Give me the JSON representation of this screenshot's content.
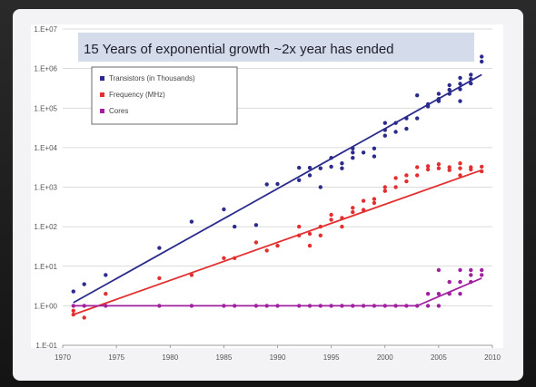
{
  "chart_data": {
    "type": "scatter",
    "title": "15 Years of exponential growth ~2x year has ended",
    "xlabel": "",
    "ylabel": "",
    "scale_y": "log",
    "xlim": [
      1970,
      2010
    ],
    "ylim": [
      0.1,
      10000000
    ],
    "x_ticks": [
      "1970",
      "1975",
      "1980",
      "1985",
      "1990",
      "1995",
      "2000",
      "2005",
      "2010"
    ],
    "y_ticks": [
      "1.E-01",
      "1.E+00",
      "1.E+01",
      "1.E+02",
      "1.E+03",
      "1.E+04",
      "1.E+05",
      "1.E+06",
      "1.E+07"
    ],
    "grid": true,
    "legend_position": "top-left",
    "series": [
      {
        "name": "Transistors (in Thousands)",
        "color": "#2b2b8c",
        "trend": [
          [
            1971,
            1.2
          ],
          [
            2009,
            700000
          ]
        ],
        "points": [
          [
            1971,
            2.3
          ],
          [
            1972,
            3.5
          ],
          [
            1974,
            6
          ],
          [
            1979,
            29
          ],
          [
            1982,
            134
          ],
          [
            1985,
            275
          ],
          [
            1986,
            100
          ],
          [
            1988,
            110
          ],
          [
            1989,
            1180
          ],
          [
            1990,
            1200
          ],
          [
            1992,
            1500
          ],
          [
            1992,
            3100
          ],
          [
            1993,
            3100
          ],
          [
            1993,
            2000
          ],
          [
            1994,
            1000
          ],
          [
            1994,
            3000
          ],
          [
            1995,
            3300
          ],
          [
            1995,
            5500
          ],
          [
            1996,
            4000
          ],
          [
            1996,
            3000
          ],
          [
            1997,
            7500
          ],
          [
            1997,
            5500
          ],
          [
            1997,
            9500
          ],
          [
            1998,
            7500
          ],
          [
            1999,
            9500
          ],
          [
            1999,
            6000
          ],
          [
            2000,
            20000
          ],
          [
            2000,
            28000
          ],
          [
            2000,
            42000
          ],
          [
            2001,
            42000
          ],
          [
            2001,
            25000
          ],
          [
            2002,
            55000
          ],
          [
            2002,
            30000
          ],
          [
            2003,
            210000
          ],
          [
            2003,
            55000
          ],
          [
            2004,
            125000
          ],
          [
            2004,
            110000
          ],
          [
            2005,
            230000
          ],
          [
            2005,
            170000
          ],
          [
            2005,
            150000
          ],
          [
            2006,
            290000
          ],
          [
            2006,
            230000
          ],
          [
            2006,
            380000
          ],
          [
            2007,
            410000
          ],
          [
            2007,
            580000
          ],
          [
            2007,
            300000
          ],
          [
            2007,
            150000
          ],
          [
            2008,
            700000
          ],
          [
            2008,
            550000
          ],
          [
            2008,
            420000
          ],
          [
            2009,
            2000000
          ],
          [
            2009,
            1500000
          ]
        ]
      },
      {
        "name": "Frequency (MHz)",
        "color": "#e23030",
        "trend": [
          [
            1971,
            0.6
          ],
          [
            2009,
            2700
          ]
        ],
        "points": [
          [
            1971,
            0.75
          ],
          [
            1971,
            0.6
          ],
          [
            1972,
            0.5
          ],
          [
            1974,
            2
          ],
          [
            1979,
            5
          ],
          [
            1982,
            6
          ],
          [
            1985,
            16
          ],
          [
            1986,
            16
          ],
          [
            1988,
            40
          ],
          [
            1989,
            25
          ],
          [
            1990,
            33
          ],
          [
            1992,
            60
          ],
          [
            1992,
            100
          ],
          [
            1993,
            66
          ],
          [
            1993,
            33
          ],
          [
            1994,
            100
          ],
          [
            1994,
            60
          ],
          [
            1995,
            200
          ],
          [
            1995,
            150
          ],
          [
            1996,
            166
          ],
          [
            1996,
            100
          ],
          [
            1997,
            300
          ],
          [
            1997,
            233
          ],
          [
            1998,
            450
          ],
          [
            1998,
            266
          ],
          [
            1999,
            500
          ],
          [
            1999,
            400
          ],
          [
            2000,
            1000
          ],
          [
            2000,
            800
          ],
          [
            2001,
            1700
          ],
          [
            2001,
            1000
          ],
          [
            2002,
            2000
          ],
          [
            2002,
            1400
          ],
          [
            2003,
            3200
          ],
          [
            2003,
            2000
          ],
          [
            2004,
            3400
          ],
          [
            2004,
            2800
          ],
          [
            2005,
            3800
          ],
          [
            2005,
            3000
          ],
          [
            2006,
            2700
          ],
          [
            2006,
            3200
          ],
          [
            2007,
            3000
          ],
          [
            2007,
            4000
          ],
          [
            2007,
            2000
          ],
          [
            2008,
            3200
          ],
          [
            2008,
            2800
          ],
          [
            2009,
            3300
          ],
          [
            2009,
            2500
          ]
        ]
      },
      {
        "name": "Cores",
        "color": "#a020a0",
        "trend": [
          [
            1971,
            1
          ],
          [
            2003,
            1
          ],
          [
            2009,
            5
          ]
        ],
        "points": [
          [
            1971,
            1
          ],
          [
            1972,
            1
          ],
          [
            1974,
            1
          ],
          [
            1979,
            1
          ],
          [
            1982,
            1
          ],
          [
            1985,
            1
          ],
          [
            1986,
            1
          ],
          [
            1988,
            1
          ],
          [
            1989,
            1
          ],
          [
            1990,
            1
          ],
          [
            1992,
            1
          ],
          [
            1993,
            1
          ],
          [
            1994,
            1
          ],
          [
            1995,
            1
          ],
          [
            1996,
            1
          ],
          [
            1997,
            1
          ],
          [
            1998,
            1
          ],
          [
            1999,
            1
          ],
          [
            2000,
            1
          ],
          [
            2001,
            1
          ],
          [
            2002,
            1
          ],
          [
            2003,
            1
          ],
          [
            2004,
            1
          ],
          [
            2004,
            2
          ],
          [
            2005,
            2
          ],
          [
            2005,
            1
          ],
          [
            2005,
            8
          ],
          [
            2006,
            2
          ],
          [
            2006,
            4
          ],
          [
            2007,
            4
          ],
          [
            2007,
            8
          ],
          [
            2007,
            2
          ],
          [
            2008,
            6
          ],
          [
            2008,
            4
          ],
          [
            2008,
            8
          ],
          [
            2009,
            6
          ],
          [
            2009,
            8
          ]
        ]
      }
    ]
  }
}
